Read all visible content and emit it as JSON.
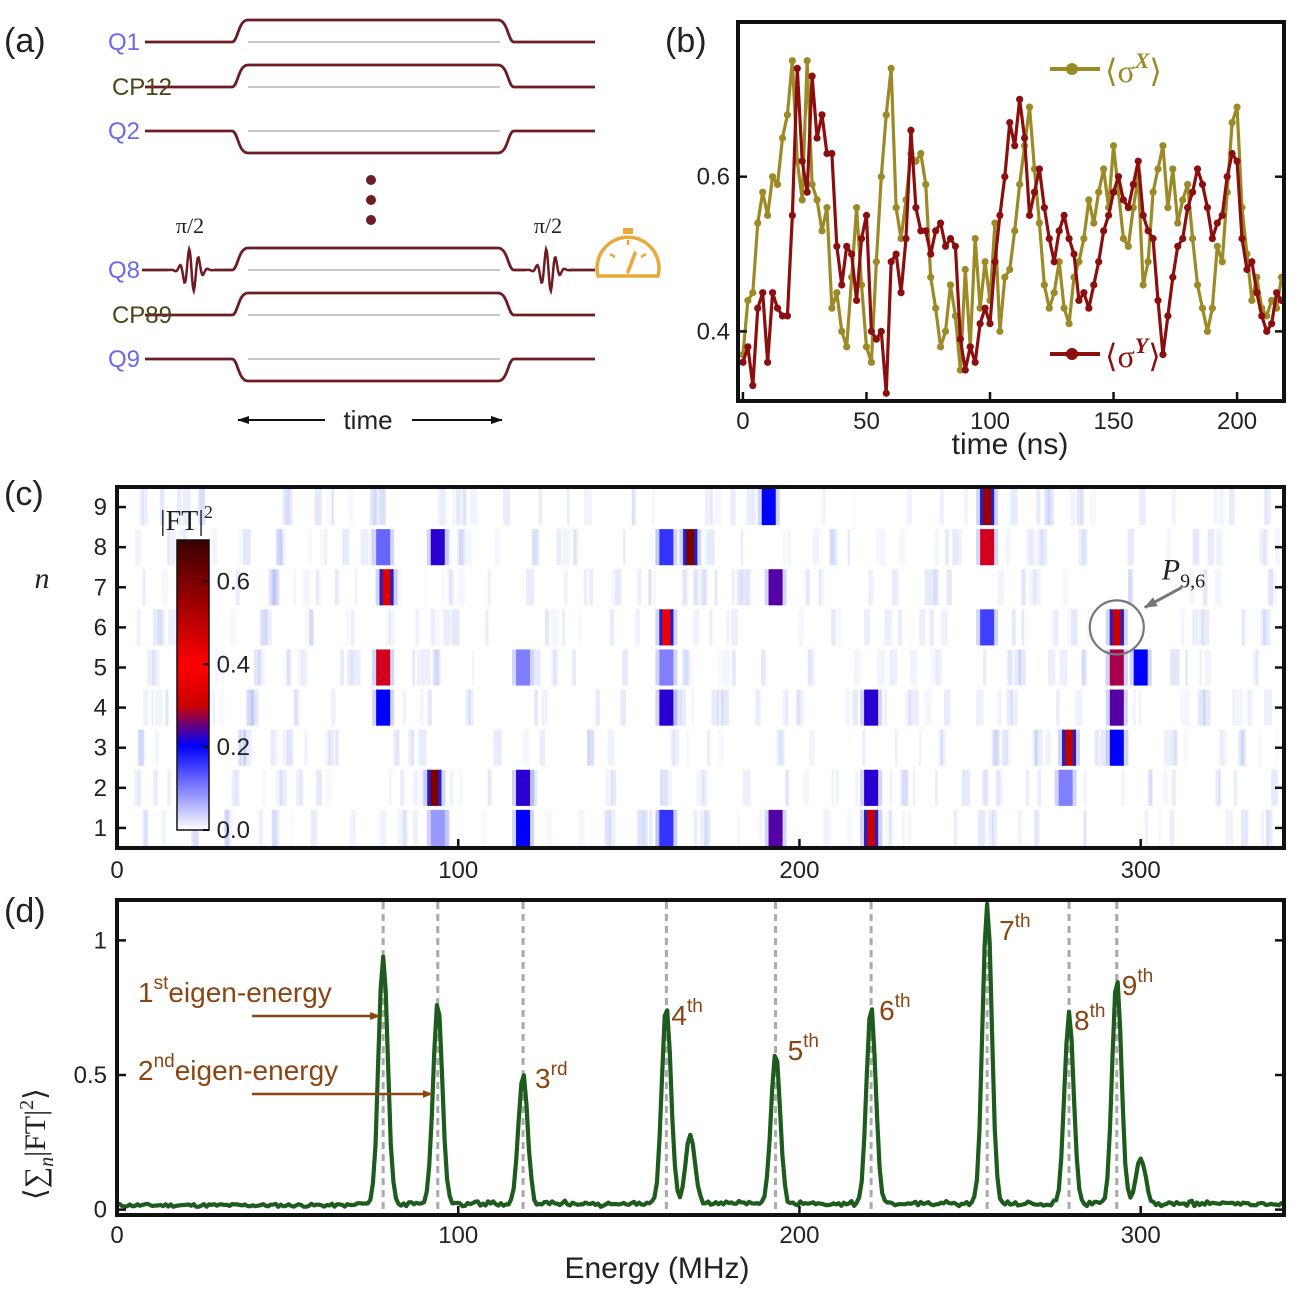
{
  "panels": {
    "a": "(a)",
    "b": "(b)",
    "c": "(c)",
    "d": "(d)"
  },
  "colors": {
    "wire": "#6e1c23",
    "qubit_label": "#6b6be6",
    "coupler_label": "#4d4418",
    "gauge": "#e8a83a",
    "sx": "#9c8a26",
    "sy": "#8b0f0f",
    "spectrum": "#1e5c1e",
    "annotation": "#8b4513",
    "dashed": "#aaaaaa"
  },
  "circuit": {
    "lines": [
      {
        "label": "Q1",
        "kind": "qubit",
        "pulse": "up"
      },
      {
        "label": "CP12",
        "kind": "coupler",
        "pulse": "up"
      },
      {
        "label": "Q2",
        "kind": "qubit",
        "pulse": "down"
      },
      {
        "label": "Q8",
        "kind": "qubit",
        "pulse": "up",
        "drive": true
      },
      {
        "label": "CP89",
        "kind": "coupler",
        "pulse": "up"
      },
      {
        "label": "Q9",
        "kind": "qubit",
        "pulse": "down"
      }
    ],
    "pi_left": "π/2",
    "pi_right": "π/2",
    "time_label": "time",
    "meter_icon": "gauge-icon"
  },
  "chart_data": [
    {
      "id": "b",
      "type": "line",
      "xlabel": "time (ns)",
      "xlim": [
        -2,
        219
      ],
      "ylim": [
        0.31,
        0.8
      ],
      "xticks": [
        0,
        50,
        100,
        150,
        200
      ],
      "yticks": [
        0.4,
        0.6
      ],
      "yticklabels": [
        "0.4",
        "0.6"
      ],
      "series": [
        {
          "name": "⟨σ",
          "sup": "X",
          "close": "⟩",
          "x0": 0,
          "dx": 2,
          "values": [
            0.37,
            0.44,
            0.45,
            0.54,
            0.58,
            0.55,
            0.6,
            0.59,
            0.65,
            0.68,
            0.75,
            0.62,
            0.57,
            0.75,
            0.59,
            0.57,
            0.53,
            0.56,
            0.43,
            0.45,
            0.4,
            0.38,
            0.47,
            0.56,
            0.46,
            0.38,
            0.36,
            0.49,
            0.6,
            0.68,
            0.74,
            0.56,
            0.52,
            0.57,
            0.63,
            0.62,
            0.63,
            0.59,
            0.47,
            0.43,
            0.38,
            0.4,
            0.46,
            0.42,
            0.35,
            0.48,
            0.38,
            0.52,
            0.43,
            0.49,
            0.44,
            0.54,
            0.4,
            0.47,
            0.48,
            0.53,
            0.59,
            0.64,
            0.69,
            0.61,
            0.54,
            0.46,
            0.43,
            0.45,
            0.49,
            0.43,
            0.41,
            0.47,
            0.49,
            0.52,
            0.57,
            0.54,
            0.58,
            0.61,
            0.56,
            0.64,
            0.58,
            0.52,
            0.51,
            0.56,
            0.6,
            0.46,
            0.49,
            0.58,
            0.61,
            0.64,
            0.56,
            0.61,
            0.54,
            0.57,
            0.59,
            0.52,
            0.46,
            0.43,
            0.4,
            0.43,
            0.51,
            0.49,
            0.58,
            0.67,
            0.69,
            0.56,
            0.5,
            0.44,
            0.47,
            0.43,
            0.42,
            0.44,
            0.43,
            0.47,
            0.39
          ]
        },
        {
          "name": "⟨σ",
          "sup": "Y",
          "close": "⟩",
          "x0": 0,
          "dx": 2,
          "values": [
            0.36,
            0.38,
            0.33,
            0.43,
            0.45,
            0.36,
            0.45,
            0.43,
            0.42,
            0.42,
            0.55,
            0.74,
            0.62,
            0.58,
            0.73,
            0.65,
            0.68,
            0.63,
            0.63,
            0.51,
            0.46,
            0.51,
            0.5,
            0.44,
            0.52,
            0.55,
            0.4,
            0.39,
            0.4,
            0.32,
            0.49,
            0.5,
            0.45,
            0.52,
            0.66,
            0.56,
            0.53,
            0.53,
            0.5,
            0.53,
            0.54,
            0.51,
            0.52,
            0.51,
            0.39,
            0.35,
            0.38,
            0.36,
            0.41,
            0.43,
            0.41,
            0.49,
            0.55,
            0.6,
            0.67,
            0.64,
            0.7,
            0.65,
            0.55,
            0.58,
            0.61,
            0.56,
            0.52,
            0.49,
            0.53,
            0.55,
            0.52,
            0.5,
            0.44,
            0.45,
            0.43,
            0.46,
            0.49,
            0.53,
            0.55,
            0.58,
            0.6,
            0.57,
            0.56,
            0.59,
            0.62,
            0.55,
            0.53,
            0.52,
            0.44,
            0.37,
            0.42,
            0.47,
            0.51,
            0.52,
            0.56,
            0.58,
            0.61,
            0.59,
            0.56,
            0.52,
            0.54,
            0.55,
            0.6,
            0.63,
            0.62,
            0.52,
            0.48,
            0.49,
            0.45,
            0.42,
            0.4,
            0.41,
            0.45,
            0.44,
            0.39
          ]
        }
      ]
    },
    {
      "id": "c",
      "type": "heatmap",
      "ylabel": "n",
      "xlim": [
        0,
        342
      ],
      "xticks": [
        0,
        100,
        200,
        300
      ],
      "rows": [
        1,
        2,
        3,
        4,
        5,
        6,
        7,
        8,
        9
      ],
      "colorbar": {
        "title": "|FT|",
        "sup": "2",
        "range": [
          0,
          0.7
        ],
        "ticks": [
          0.0,
          0.2,
          0.4,
          0.6
        ],
        "ticklabels": [
          "0.0",
          "0.2",
          "0.4",
          "0.6"
        ]
      },
      "peaks": [
        {
          "n": 9,
          "e": 191,
          "v": 0.2
        },
        {
          "n": 9,
          "e": 255,
          "v": 0.55
        },
        {
          "n": 8,
          "e": 78,
          "v": 0.12
        },
        {
          "n": 8,
          "e": 94,
          "v": 0.22
        },
        {
          "n": 8,
          "e": 161,
          "v": 0.16
        },
        {
          "n": 8,
          "e": 168,
          "v": 0.6
        },
        {
          "n": 8,
          "e": 255,
          "v": 0.3
        },
        {
          "n": 7,
          "e": 79,
          "v": 0.45
        },
        {
          "n": 7,
          "e": 193,
          "v": 0.24
        },
        {
          "n": 6,
          "e": 161,
          "v": 0.42
        },
        {
          "n": 6,
          "e": 255,
          "v": 0.15
        },
        {
          "n": 6,
          "e": 293,
          "v": 0.48
        },
        {
          "n": 5,
          "e": 78,
          "v": 0.3
        },
        {
          "n": 5,
          "e": 119,
          "v": 0.1
        },
        {
          "n": 5,
          "e": 161,
          "v": 0.1
        },
        {
          "n": 5,
          "e": 293,
          "v": 0.28
        },
        {
          "n": 5,
          "e": 300,
          "v": 0.2
        },
        {
          "n": 4,
          "e": 78,
          "v": 0.2
        },
        {
          "n": 4,
          "e": 161,
          "v": 0.22
        },
        {
          "n": 4,
          "e": 221,
          "v": 0.22
        },
        {
          "n": 4,
          "e": 293,
          "v": 0.24
        },
        {
          "n": 3,
          "e": 279,
          "v": 0.5
        },
        {
          "n": 3,
          "e": 293,
          "v": 0.2
        },
        {
          "n": 2,
          "e": 93,
          "v": 0.6
        },
        {
          "n": 2,
          "e": 119,
          "v": 0.22
        },
        {
          "n": 2,
          "e": 221,
          "v": 0.22
        },
        {
          "n": 2,
          "e": 278,
          "v": 0.1
        },
        {
          "n": 1,
          "e": 94,
          "v": 0.08
        },
        {
          "n": 1,
          "e": 119,
          "v": 0.2
        },
        {
          "n": 1,
          "e": 161,
          "v": 0.16
        },
        {
          "n": 1,
          "e": 193,
          "v": 0.24
        },
        {
          "n": 1,
          "e": 221,
          "v": 0.48
        }
      ],
      "annotation": {
        "text": "P",
        "sub": "9,6",
        "n": 6,
        "e": 293
      }
    },
    {
      "id": "d",
      "type": "line",
      "xlabel": "Energy (MHz)",
      "ylabel": "⟨∑",
      "ylabel_sub": "n",
      "ylabel_rest": "|FT|",
      "ylabel_sup": "2",
      "ylabel_close": "⟩",
      "xlim": [
        0,
        342
      ],
      "ylim": [
        -0.02,
        1.15
      ],
      "xticks": [
        0,
        100,
        200,
        300
      ],
      "yticks": [
        0,
        0.5,
        1
      ],
      "yticklabels": [
        "0",
        "0.5",
        "1"
      ],
      "peaks": [
        {
          "e": 78,
          "h": 0.92,
          "ord": "1",
          "sfx": "st"
        },
        {
          "e": 94,
          "h": 0.75,
          "ord": "2",
          "sfx": "nd"
        },
        {
          "e": 119,
          "h": 0.48,
          "ord": "3",
          "sfx": "rd"
        },
        {
          "e": 161,
          "h": 0.74,
          "ord": "4",
          "sfx": "th"
        },
        {
          "e": 193,
          "h": 0.56,
          "ord": "5",
          "sfx": "th"
        },
        {
          "e": 221,
          "h": 0.73,
          "ord": "6",
          "sfx": "th"
        },
        {
          "e": 255,
          "h": 1.12,
          "ord": "7",
          "sfx": "th"
        },
        {
          "e": 279,
          "h": 0.71,
          "ord": "8",
          "sfx": "th"
        },
        {
          "e": 293,
          "h": 0.84,
          "ord": "9",
          "sfx": "th"
        }
      ],
      "minor_peaks": [
        {
          "e": 168,
          "h": 0.26
        },
        {
          "e": 300,
          "h": 0.17
        }
      ],
      "eigen_word": "eigen-energy"
    }
  ]
}
